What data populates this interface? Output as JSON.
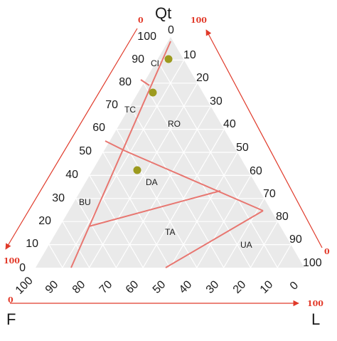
{
  "apex_labels": {
    "top": "Qt",
    "left": "F",
    "right": "L"
  },
  "scales": {
    "left_edge": [
      "100",
      "90",
      "80",
      "70",
      "60",
      "50",
      "40",
      "30",
      "20",
      "10",
      "0"
    ],
    "right_edge": [
      "0",
      "10",
      "20",
      "30",
      "40",
      "50",
      "60",
      "70",
      "80",
      "90",
      "100"
    ],
    "bottom_edge": [
      "100",
      "90",
      "80",
      "70",
      "60",
      "50",
      "40",
      "30",
      "20",
      "10",
      "0"
    ]
  },
  "arrow_labels": {
    "left_arrow_start": "0",
    "left_arrow_end": "100",
    "right_arrow_start": "100",
    "right_arrow_end": "0",
    "bottom_arrow_start": "0",
    "bottom_arrow_end": "100"
  },
  "fields": {
    "CI": "CI",
    "TC": "TC",
    "RO": "RO",
    "DA": "DA",
    "BU": "BU",
    "TA": "TA",
    "UA": "UA"
  },
  "colors": {
    "triangle_fill": "#eaeaea",
    "grid": "#ffffff",
    "boundary": "#e87670",
    "arrow": "#e03a2a",
    "point": "#9c9a1e"
  },
  "sample_points": [
    {
      "Qt": 95,
      "F": 2,
      "L": 3
    },
    {
      "Qt": 84,
      "F": 10,
      "L": 6
    },
    {
      "Qt": 49,
      "F": 39,
      "L": 12
    }
  ]
}
